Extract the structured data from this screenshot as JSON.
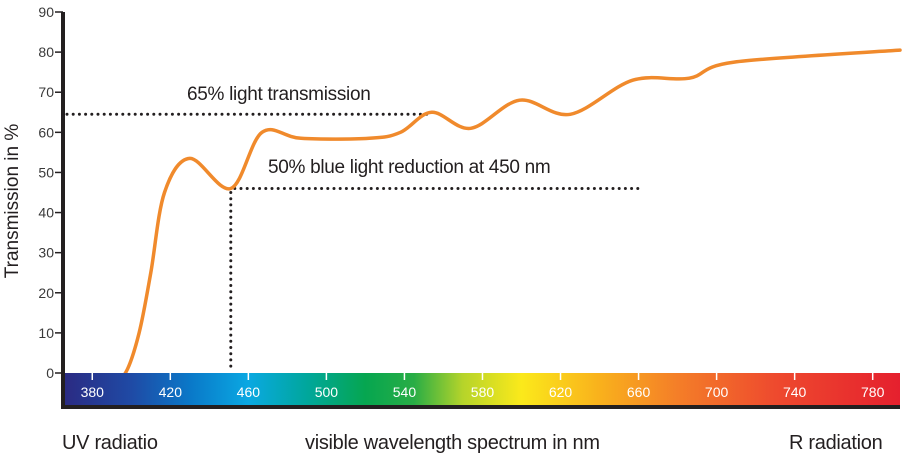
{
  "chart_data": {
    "type": "line",
    "title": "",
    "xlabel": "visible wavelength spectrum in nm",
    "ylabel": "Transmission in %",
    "xlim": [
      365,
      794
    ],
    "ylim": [
      0,
      90
    ],
    "grid": false,
    "legend": null,
    "y_ticks": [
      0,
      10,
      20,
      30,
      40,
      50,
      60,
      70,
      80,
      90
    ],
    "x_ticks": [
      380,
      420,
      460,
      500,
      540,
      580,
      620,
      660,
      700,
      740,
      780
    ],
    "series": [
      {
        "name": "Transmission",
        "color": "#f08a2c",
        "x": [
          397,
          404,
          410,
          417,
          430,
          451,
          467,
          487,
          522,
          538,
          554,
          574,
          599,
          625,
          657,
          686,
          709,
          794
        ],
        "y": [
          0,
          10,
          25,
          45,
          53.5,
          46,
          60,
          58.5,
          58.5,
          60,
          65,
          61,
          68,
          64.5,
          73,
          73.5,
          77.5,
          80.5
        ]
      }
    ],
    "reference_lines": [
      {
        "type": "horizontal",
        "y": 64.5,
        "x_range": [
          365,
          554
        ],
        "label": "65% light transmission"
      },
      {
        "type": "horizontal",
        "y": 46,
        "x_range": [
          451,
          660
        ],
        "label": "50% blue light reduction at 450 nm"
      },
      {
        "type": "vertical",
        "x": 451,
        "y_range": [
          0,
          46
        ]
      }
    ],
    "annotations": [
      "65% light transmission",
      "50% blue light reduction at 450 nm"
    ],
    "spectrum_bar": {
      "stops": [
        {
          "nm": 365,
          "color": "#2b2a82"
        },
        {
          "nm": 400,
          "color": "#1f4aa5"
        },
        {
          "nm": 430,
          "color": "#0a78c8"
        },
        {
          "nm": 460,
          "color": "#0aa8e2"
        },
        {
          "nm": 490,
          "color": "#00a79c"
        },
        {
          "nm": 520,
          "color": "#06a650"
        },
        {
          "nm": 545,
          "color": "#29ad45"
        },
        {
          "nm": 570,
          "color": "#b6d42a"
        },
        {
          "nm": 600,
          "color": "#fbe91b"
        },
        {
          "nm": 640,
          "color": "#f9b11c"
        },
        {
          "nm": 680,
          "color": "#f47e28"
        },
        {
          "nm": 730,
          "color": "#ee4a2e"
        },
        {
          "nm": 794,
          "color": "#e5202e"
        }
      ]
    }
  },
  "labels": {
    "ylabel": "Transmission in %",
    "annotation_65": "65% light transmission",
    "annotation_50": "50% blue light reduction at 450 nm",
    "footer_left": "UV radiatio",
    "footer_center": "visible wavelength spectrum in nm",
    "footer_right": "R radiation"
  },
  "colors": {
    "curve": "#f08a2c",
    "axis": "#231f20",
    "text": "#231f20",
    "tick_label_on_bar": "#ffffff"
  }
}
